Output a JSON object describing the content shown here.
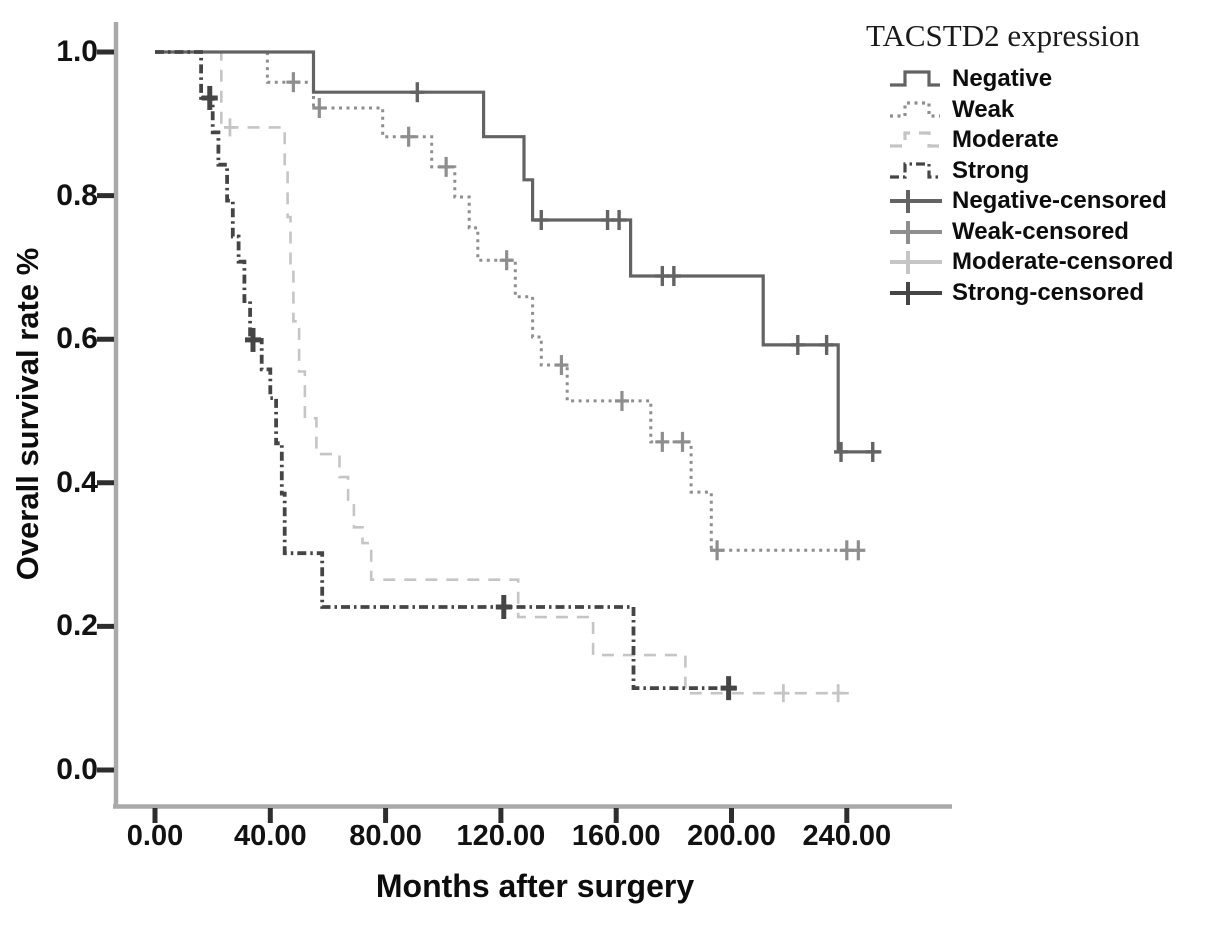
{
  "figure": {
    "background": "#ffffff"
  },
  "legend": {
    "title": "TACSTD2 expression",
    "items": [
      {
        "label": "Negative",
        "series_key": "negative",
        "kind": "line"
      },
      {
        "label": "Weak",
        "series_key": "weak",
        "kind": "line"
      },
      {
        "label": "Moderate",
        "series_key": "moderate",
        "kind": "line"
      },
      {
        "label": "Strong",
        "series_key": "strong",
        "kind": "line"
      },
      {
        "label": "Negative-censored",
        "series_key": "negative",
        "kind": "censored"
      },
      {
        "label": "Weak-censored",
        "series_key": "weak",
        "kind": "censored"
      },
      {
        "label": "Moderate-censored",
        "series_key": "moderate",
        "kind": "censored"
      },
      {
        "label": "Strong-censored",
        "series_key": "strong",
        "kind": "censored"
      }
    ]
  },
  "axes": {
    "x": {
      "label": "Months after surgery",
      "tick_labels": [
        "0.00",
        "40.00",
        "80.00",
        "120.00",
        "160.00",
        "200.00",
        "240.00"
      ],
      "tick_values": [
        0,
        40,
        80,
        120,
        160,
        200,
        240
      ]
    },
    "y": {
      "label": "Overall survival rate %",
      "tick_labels": [
        "0.0",
        "0.2",
        "0.4",
        "0.6",
        "0.8",
        "1.0"
      ],
      "tick_values": [
        0,
        0.2,
        0.4,
        0.6,
        0.8,
        1.0
      ]
    }
  },
  "chart_data": {
    "type": "line",
    "subtype": "kaplan-meier-step",
    "title": "TACSTD2 expression",
    "xlabel": "Months after surgery",
    "ylabel": "Overall survival rate %",
    "xlim": [
      0,
      260
    ],
    "ylim": [
      0,
      1.0
    ],
    "grid": false,
    "legend_position": "top-right",
    "axis_color": "#a9a9a9",
    "tick_color": "#2e2e2e",
    "series": [
      {
        "name": "Negative",
        "key": "negative",
        "color": "#636363",
        "dash": "solid",
        "points": [
          [
            0,
            1.0
          ],
          [
            55,
            0.944
          ],
          [
            114,
            0.882
          ],
          [
            128,
            0.822
          ],
          [
            131,
            0.766
          ],
          [
            165,
            0.688
          ],
          [
            211,
            0.592
          ],
          [
            237,
            0.443
          ],
          [
            252,
            0.443
          ]
        ],
        "censored": [
          [
            91,
            0.944
          ],
          [
            134,
            0.766
          ],
          [
            157,
            0.766
          ],
          [
            161,
            0.766
          ],
          [
            176,
            0.688
          ],
          [
            180,
            0.688
          ],
          [
            223,
            0.592
          ],
          [
            233,
            0.592
          ],
          [
            238,
            0.443
          ],
          [
            249,
            0.443
          ]
        ]
      },
      {
        "name": "Weak",
        "key": "weak",
        "color": "#8e8e8e",
        "dash": "dotted",
        "points": [
          [
            0,
            1.0
          ],
          [
            39,
            0.958
          ],
          [
            55,
            0.922
          ],
          [
            79,
            0.882
          ],
          [
            96,
            0.84
          ],
          [
            104,
            0.798
          ],
          [
            109,
            0.755
          ],
          [
            112,
            0.71
          ],
          [
            125,
            0.659
          ],
          [
            131,
            0.603
          ],
          [
            134,
            0.564
          ],
          [
            143,
            0.514
          ],
          [
            172,
            0.457
          ],
          [
            186,
            0.387
          ],
          [
            193,
            0.306
          ],
          [
            245,
            0.306
          ]
        ],
        "censored": [
          [
            48,
            0.958
          ],
          [
            57,
            0.922
          ],
          [
            88,
            0.882
          ],
          [
            101,
            0.84
          ],
          [
            122,
            0.71
          ],
          [
            141,
            0.564
          ],
          [
            162,
            0.514
          ],
          [
            176,
            0.457
          ],
          [
            183,
            0.457
          ],
          [
            195,
            0.306
          ],
          [
            240,
            0.306
          ],
          [
            244,
            0.306
          ]
        ]
      },
      {
        "name": "Moderate",
        "key": "moderate",
        "color": "#c5c5c5",
        "dash": "long-dash",
        "points": [
          [
            0,
            1.0
          ],
          [
            23,
            0.895
          ],
          [
            45,
            0.835
          ],
          [
            46,
            0.77
          ],
          [
            47,
            0.7
          ],
          [
            48,
            0.625
          ],
          [
            50,
            0.555
          ],
          [
            52,
            0.49
          ],
          [
            56,
            0.44
          ],
          [
            64,
            0.408
          ],
          [
            67,
            0.372
          ],
          [
            69,
            0.338
          ],
          [
            72,
            0.316
          ],
          [
            75,
            0.265
          ],
          [
            126,
            0.213
          ],
          [
            152,
            0.16
          ],
          [
            184,
            0.107
          ],
          [
            241,
            0.107
          ]
        ],
        "censored": [
          [
            26,
            0.895
          ],
          [
            218,
            0.107
          ],
          [
            237,
            0.107
          ]
        ]
      },
      {
        "name": "Strong",
        "key": "strong",
        "color": "#454545",
        "dash": "dash-dot",
        "points": [
          [
            0,
            1.0
          ],
          [
            16,
            0.936
          ],
          [
            20,
            0.888
          ],
          [
            22,
            0.843
          ],
          [
            25,
            0.793
          ],
          [
            27,
            0.743
          ],
          [
            29,
            0.708
          ],
          [
            31,
            0.653
          ],
          [
            33,
            0.599
          ],
          [
            37,
            0.558
          ],
          [
            40,
            0.518
          ],
          [
            42,
            0.455
          ],
          [
            44,
            0.385
          ],
          [
            45,
            0.302
          ],
          [
            58,
            0.227
          ],
          [
            166,
            0.114
          ],
          [
            202,
            0.114
          ]
        ],
        "censored": [
          [
            19,
            0.936
          ],
          [
            34,
            0.599
          ],
          [
            121,
            0.227
          ],
          [
            199,
            0.114
          ]
        ]
      }
    ]
  }
}
